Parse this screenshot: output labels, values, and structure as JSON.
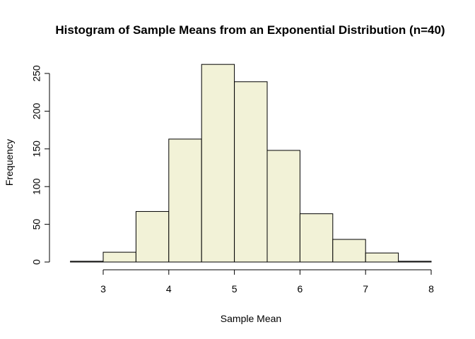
{
  "chart_data": {
    "type": "bar",
    "title": "Histogram of Sample Means from an Exponential Distribution (n=40)",
    "xlabel": "Sample Mean",
    "ylabel": "Frequency",
    "bin_edges": [
      2.5,
      3,
      3.5,
      4,
      4.5,
      5,
      5.5,
      6,
      6.5,
      7,
      7.5,
      8
    ],
    "values": [
      1,
      13,
      67,
      163,
      262,
      239,
      148,
      64,
      30,
      12,
      1
    ],
    "xlim": [
      2.5,
      8
    ],
    "ylim": [
      0,
      262
    ],
    "x_ticks": [
      3,
      4,
      5,
      6,
      7,
      8
    ],
    "x_tick_labels": [
      "3",
      "4",
      "5",
      "6",
      "7",
      "8"
    ],
    "y_ticks": [
      0,
      50,
      100,
      150,
      200,
      250
    ],
    "y_tick_labels": [
      "0",
      "50",
      "100",
      "150",
      "200",
      "250"
    ],
    "bar_color": "#f2f2d7",
    "grid": false,
    "legend": "none"
  }
}
